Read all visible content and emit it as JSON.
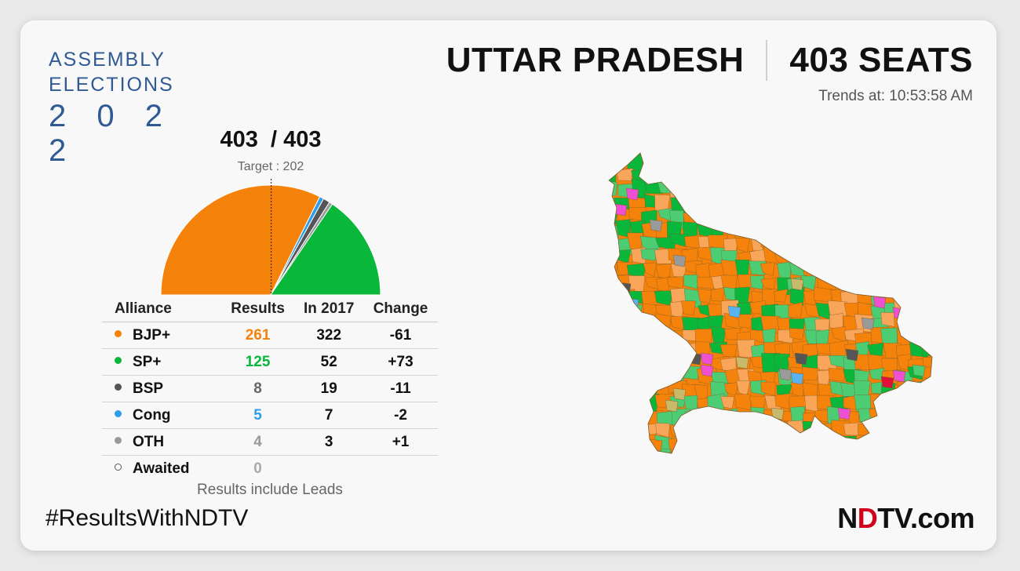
{
  "brand": {
    "line1": "ASSEMBLY",
    "line2": "ELECTIONS",
    "year": "2 0 2 2"
  },
  "header": {
    "state": "UTTAR PRADESH",
    "seats": "403 SEATS",
    "trends": "Trends at: 10:53:58 AM"
  },
  "tally": {
    "declared": "403",
    "total": "/ 403",
    "target": "Target : 202"
  },
  "table": {
    "headers": [
      "Alliance",
      "Results",
      "In 2017",
      "Change"
    ],
    "rows": [
      {
        "name": "BJP+",
        "results": "261",
        "in2017": "322",
        "change": "-61",
        "color": "#f5820a",
        "result_color": "#f5820a"
      },
      {
        "name": "SP+",
        "results": "125",
        "in2017": "52",
        "change": "+73",
        "color": "#09b73a",
        "result_color": "#09b73a"
      },
      {
        "name": "BSP",
        "results": "8",
        "in2017": "19",
        "change": "-11",
        "color": "#555555",
        "result_color": "#666666"
      },
      {
        "name": "Cong",
        "results": "5",
        "in2017": "7",
        "change": "-2",
        "color": "#2e9ee8",
        "result_color": "#2e9ee8"
      },
      {
        "name": "OTH",
        "results": "4",
        "in2017": "3",
        "change": "+1",
        "color": "#999999",
        "result_color": "#999999"
      },
      {
        "name": "Awaited",
        "results": "0",
        "in2017": "",
        "change": "",
        "color": "#ffffff",
        "result_color": "#aaaaaa"
      }
    ]
  },
  "note": "Results include Leads",
  "hashtag": "#ResultsWithNDTV",
  "logo": {
    "n": "N",
    "d": "D",
    "rest": "TV.com"
  },
  "chart_data": {
    "type": "pie",
    "subtype": "half-donut-seat-gauge",
    "total": 403,
    "target": 202,
    "categories": [
      "BJP+",
      "Cong",
      "BSP",
      "OTH",
      "SP+"
    ],
    "values": [
      261,
      5,
      8,
      4,
      125
    ],
    "colors": [
      "#f5820a",
      "#2e9ee8",
      "#555555",
      "#999999",
      "#09b73a"
    ]
  },
  "map": {
    "colors": {
      "bjp": "#f5820a",
      "bjp_light": "#f9a55a",
      "sp": "#09b73a",
      "sp_light": "#4ccc73",
      "bsp": "#555555",
      "cong": "#5ab2f0",
      "oth": "#9a9a9a",
      "rld": "#c9b96a",
      "pink": "#ef4fd1",
      "red": "#e0103a"
    }
  }
}
